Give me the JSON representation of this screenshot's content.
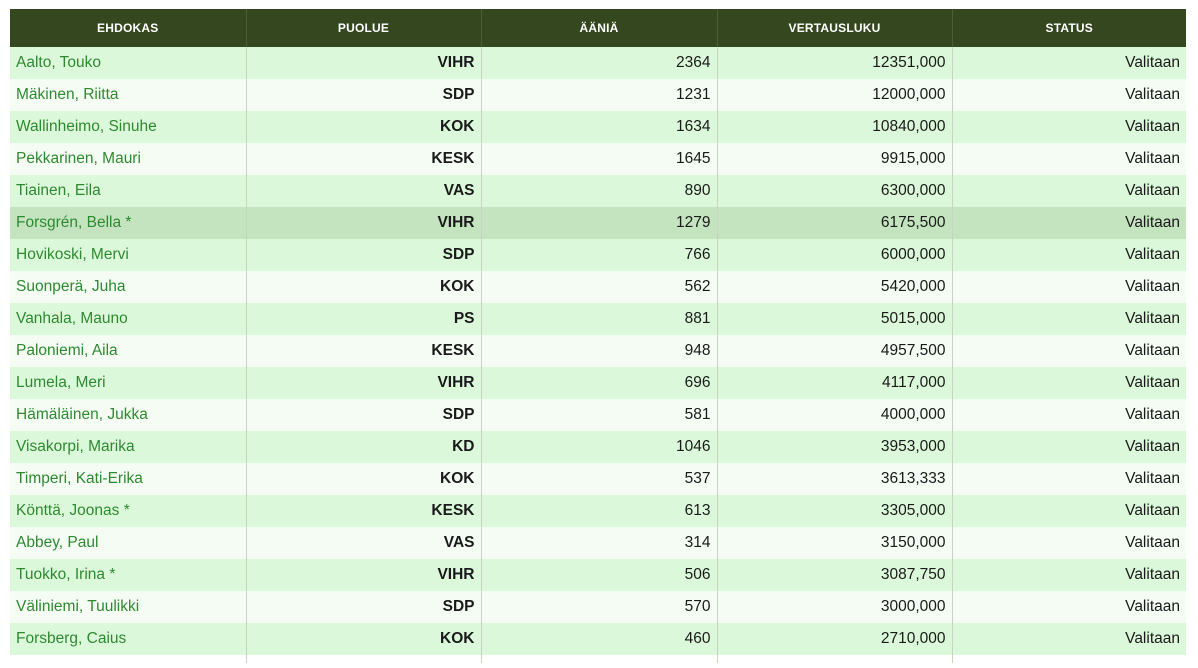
{
  "headers": {
    "candidate": "EHDOKAS",
    "party": "PUOLUE",
    "votes": "ÄÄNIÄ",
    "comparison": "VERTAUSLUKU",
    "status": "STATUS"
  },
  "colors": {
    "header_bg": "#35471f",
    "row_odd": "#dcf8da",
    "row_even": "#f4fcf4",
    "row_highlight": "#c4e3bf",
    "name_text": "#2e8a30"
  },
  "rows": [
    {
      "name": "Aalto, Touko",
      "party": "VIHR",
      "votes": "2364",
      "comparison": "12351,000",
      "status": "Valitaan"
    },
    {
      "name": "Mäkinen, Riitta",
      "party": "SDP",
      "votes": "1231",
      "comparison": "12000,000",
      "status": "Valitaan"
    },
    {
      "name": "Wallinheimo, Sinuhe",
      "party": "KOK",
      "votes": "1634",
      "comparison": "10840,000",
      "status": "Valitaan"
    },
    {
      "name": "Pekkarinen, Mauri",
      "party": "KESK",
      "votes": "1645",
      "comparison": "9915,000",
      "status": "Valitaan"
    },
    {
      "name": "Tiainen, Eila",
      "party": "VAS",
      "votes": "890",
      "comparison": "6300,000",
      "status": "Valitaan"
    },
    {
      "name": "Forsgrén, Bella *",
      "party": "VIHR",
      "votes": "1279",
      "comparison": "6175,500",
      "status": "Valitaan",
      "highlight": true
    },
    {
      "name": "Hovikoski, Mervi",
      "party": "SDP",
      "votes": "766",
      "comparison": "6000,000",
      "status": "Valitaan"
    },
    {
      "name": "Suonperä, Juha",
      "party": "KOK",
      "votes": "562",
      "comparison": "5420,000",
      "status": "Valitaan"
    },
    {
      "name": "Vanhala, Mauno",
      "party": "PS",
      "votes": "881",
      "comparison": "5015,000",
      "status": "Valitaan"
    },
    {
      "name": "Paloniemi, Aila",
      "party": "KESK",
      "votes": "948",
      "comparison": "4957,500",
      "status": "Valitaan"
    },
    {
      "name": "Lumela, Meri",
      "party": "VIHR",
      "votes": "696",
      "comparison": "4117,000",
      "status": "Valitaan"
    },
    {
      "name": "Hämäläinen, Jukka",
      "party": "SDP",
      "votes": "581",
      "comparison": "4000,000",
      "status": "Valitaan"
    },
    {
      "name": "Visakorpi, Marika",
      "party": "KD",
      "votes": "1046",
      "comparison": "3953,000",
      "status": "Valitaan"
    },
    {
      "name": "Timperi, Kati-Erika",
      "party": "KOK",
      "votes": "537",
      "comparison": "3613,333",
      "status": "Valitaan"
    },
    {
      "name": "Könttä, Joonas *",
      "party": "KESK",
      "votes": "613",
      "comparison": "3305,000",
      "status": "Valitaan"
    },
    {
      "name": "Abbey, Paul",
      "party": "VAS",
      "votes": "314",
      "comparison": "3150,000",
      "status": "Valitaan"
    },
    {
      "name": "Tuokko, Irina *",
      "party": "VIHR",
      "votes": "506",
      "comparison": "3087,750",
      "status": "Valitaan"
    },
    {
      "name": "Väliniemi, Tuulikki",
      "party": "SDP",
      "votes": "570",
      "comparison": "3000,000",
      "status": "Valitaan"
    },
    {
      "name": "Forsberg, Caius",
      "party": "KOK",
      "votes": "460",
      "comparison": "2710,000",
      "status": "Valitaan"
    }
  ]
}
